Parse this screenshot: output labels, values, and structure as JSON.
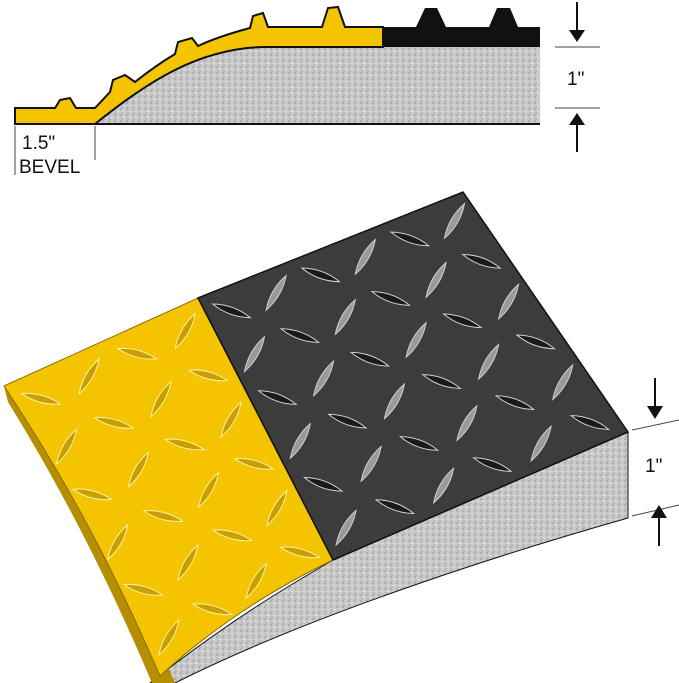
{
  "profile": {
    "bevel_width_label": "1.5\"",
    "bevel_label": "BEVEL",
    "thickness_label": "1\""
  },
  "mat_3d": {
    "thickness_label": "1\""
  },
  "colors": {
    "yellow": "#f5c400",
    "black": "#3a3a3a",
    "foam": "#c8c8c8",
    "outline": "#111111"
  }
}
